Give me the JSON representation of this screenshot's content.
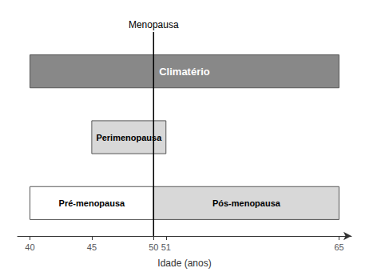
{
  "chart_data": {
    "type": "timeline",
    "xlabel": "Idade (anos)",
    "xlim": [
      39,
      66
    ],
    "xticks": [
      40,
      45,
      50,
      51,
      65
    ],
    "grid": false,
    "rows": [
      [
        {
          "label": "Climatério",
          "start": 40,
          "end": 65,
          "color": "#888888"
        }
      ],
      [
        {
          "label": "Perimenopausa",
          "start": 45,
          "end": 51,
          "color": "#d8d8d8"
        }
      ],
      [
        {
          "label": "Pré-menopausa",
          "start": 40,
          "end": 50,
          "color": "#ffffff"
        },
        {
          "label": "Pós-menopausa",
          "start": 50,
          "end": 65,
          "color": "#d8d8d8"
        }
      ]
    ],
    "annotations": [
      {
        "text": "Menopausa",
        "x": 50
      }
    ]
  }
}
